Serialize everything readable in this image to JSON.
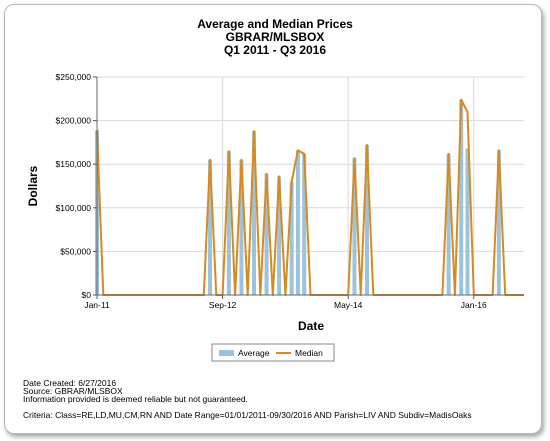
{
  "chart_data": {
    "type": "bar+line",
    "title": [
      "Average and Median Prices",
      "GBRAR/MLSBOX",
      "Q1 2011 - Q3 2016"
    ],
    "xlabel": "Date",
    "ylabel": "Dollars",
    "ylim": [
      0,
      250000
    ],
    "yticks": [
      0,
      50000,
      100000,
      150000,
      200000,
      250000
    ],
    "yticklabels": [
      "$0",
      "$50,000",
      "$100,000",
      "$150,000",
      "$200,000",
      "$250,000"
    ],
    "xlim": [
      "2011-01",
      "2016-09"
    ],
    "xticks": [
      "2011-01",
      "2012-09",
      "2014-05",
      "2016-01"
    ],
    "xticklabels": [
      "Jan-11",
      "Sep-12",
      "May-14",
      "Jan-16"
    ],
    "grid": true,
    "legend_position": "bottom",
    "series": [
      {
        "name": "Average",
        "kind": "bar",
        "color": "#9cc3de",
        "x": [
          "2011-01",
          "2012-07",
          "2012-10",
          "2012-12",
          "2013-02",
          "2013-04",
          "2013-06",
          "2013-08",
          "2013-09",
          "2013-10",
          "2014-06",
          "2014-08",
          "2015-09",
          "2015-11",
          "2015-12",
          "2016-05"
        ],
        "values": [
          189000,
          155000,
          165000,
          155000,
          188000,
          139000,
          136000,
          130000,
          166000,
          162000,
          157000,
          172000,
          162000,
          224000,
          168000,
          166000
        ]
      },
      {
        "name": "Median",
        "kind": "line",
        "color": "#d88a1f",
        "x": [
          "2011-01",
          "2012-07",
          "2012-10",
          "2012-12",
          "2013-02",
          "2013-04",
          "2013-06",
          "2013-08",
          "2013-09",
          "2013-10",
          "2014-06",
          "2014-08",
          "2015-09",
          "2015-11",
          "2015-12",
          "2016-05"
        ],
        "values": [
          189000,
          155000,
          165000,
          155000,
          188000,
          139000,
          136000,
          130000,
          166000,
          162000,
          157000,
          172000,
          162000,
          224000,
          210000,
          166000
        ]
      }
    ]
  },
  "notes": {
    "date_created": "Date Created: 6/27/2016",
    "source": "Source: GBRAR/MLSBOX",
    "disclaimer": "Information provided is deemed reliable but not guaranteed.",
    "criteria": "Criteria: Class=RE,LD,MU,CM,RN AND Date Range=01/01/2011-09/30/2016 AND Parish=LIV AND Subdiv=MadisOaks"
  }
}
